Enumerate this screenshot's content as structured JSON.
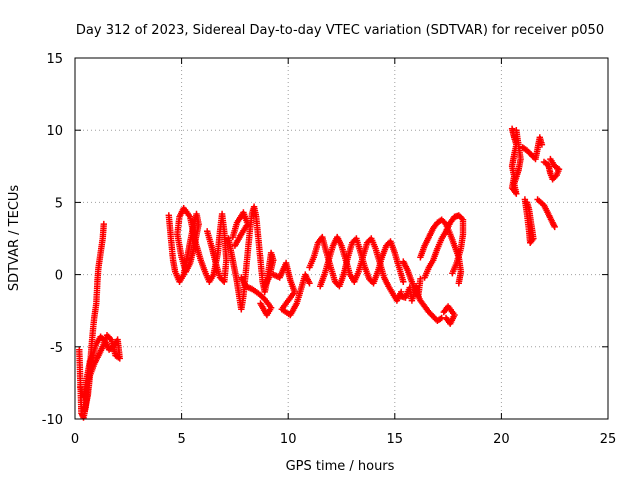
{
  "chart_data": {
    "type": "scatter",
    "title": "Day 312 of 2023, Sidereal Day-to-day VTEC variation (SDTVAR) for receiver p050",
    "xlabel": "GPS time / hours",
    "ylabel": "SDTVAR / TECUs",
    "xlim": [
      0,
      25
    ],
    "ylim": [
      -10,
      15
    ],
    "xticks": [
      "0",
      "5",
      "10",
      "15",
      "20",
      "25"
    ],
    "yticks": [
      "-10",
      "-5",
      "0",
      "5",
      "10",
      "15"
    ],
    "grid": true,
    "marker": "+",
    "color": "#ff0000",
    "series": [
      {
        "name": "SDTVAR",
        "segments": [
          [
            [
              0.2,
              -5.2
            ],
            [
              0.3,
              -9.6
            ],
            [
              0.4,
              -9.9
            ],
            [
              0.5,
              -9.2
            ],
            [
              0.6,
              -8.0
            ],
            [
              0.7,
              -6.5
            ],
            [
              0.8,
              -4.5
            ],
            [
              0.9,
              -3.0
            ],
            [
              1.0,
              -2.0
            ],
            [
              1.05,
              -0.5
            ],
            [
              1.1,
              0.5
            ],
            [
              1.2,
              1.5
            ],
            [
              1.3,
              2.5
            ],
            [
              1.35,
              3.5
            ]
          ],
          [
            [
              0.25,
              -7.8
            ],
            [
              0.4,
              -8.5
            ],
            [
              0.55,
              -7.2
            ],
            [
              0.7,
              -6.0
            ],
            [
              0.85,
              -5.5
            ],
            [
              1.0,
              -4.8
            ],
            [
              1.2,
              -4.3
            ],
            [
              1.4,
              -4.6
            ],
            [
              1.6,
              -5.2
            ],
            [
              1.8,
              -5.0
            ],
            [
              2.0,
              -4.5
            ],
            [
              2.1,
              -5.8
            ],
            [
              1.9,
              -5.6
            ],
            [
              1.7,
              -4.5
            ],
            [
              1.5,
              -4.2
            ],
            [
              1.3,
              -5.0
            ],
            [
              1.1,
              -5.6
            ],
            [
              0.9,
              -6.2
            ],
            [
              0.7,
              -7.0
            ],
            [
              0.6,
              -8.4
            ],
            [
              0.45,
              -9.4
            ]
          ],
          [
            [
              4.4,
              4.1
            ],
            [
              4.5,
              2.5
            ],
            [
              4.6,
              1.0
            ],
            [
              4.7,
              0.2
            ],
            [
              4.9,
              -0.5
            ],
            [
              5.1,
              0.0
            ],
            [
              5.3,
              1.5
            ],
            [
              5.5,
              3.0
            ],
            [
              5.7,
              4.2
            ],
            [
              5.8,
              3.5
            ],
            [
              5.6,
              2.0
            ],
            [
              5.4,
              0.8
            ],
            [
              5.2,
              0.2
            ],
            [
              5.0,
              1.2
            ],
            [
              4.8,
              2.8
            ],
            [
              4.9,
              4.0
            ],
            [
              5.1,
              4.6
            ],
            [
              5.4,
              4.0
            ],
            [
              5.6,
              2.5
            ],
            [
              5.9,
              1.0
            ],
            [
              6.1,
              0.2
            ],
            [
              6.3,
              -0.5
            ],
            [
              6.5,
              0.0
            ],
            [
              6.7,
              1.5
            ],
            [
              6.8,
              3.0
            ],
            [
              6.9,
              4.2
            ],
            [
              7.0,
              3.0
            ],
            [
              7.1,
              1.0
            ],
            [
              7.0,
              -0.5
            ],
            [
              6.8,
              -0.2
            ],
            [
              6.6,
              0.8
            ],
            [
              6.4,
              2.0
            ],
            [
              6.2,
              3.0
            ]
          ],
          [
            [
              7.2,
              2.5
            ],
            [
              7.4,
              1.0
            ],
            [
              7.6,
              -0.5
            ],
            [
              7.7,
              -1.5
            ],
            [
              7.8,
              -2.4
            ],
            [
              7.9,
              -1.5
            ],
            [
              8.0,
              0.0
            ],
            [
              8.1,
              1.5
            ],
            [
              8.2,
              3.0
            ],
            [
              8.3,
              4.2
            ],
            [
              8.4,
              4.7
            ],
            [
              8.5,
              4.0
            ],
            [
              8.6,
              2.5
            ],
            [
              8.7,
              1.0
            ],
            [
              8.8,
              -0.5
            ],
            [
              8.9,
              -1.2
            ],
            [
              9.0,
              -0.5
            ],
            [
              9.1,
              0.5
            ],
            [
              9.2,
              1.5
            ],
            [
              9.3,
              1.0
            ],
            [
              9.1,
              -0.2
            ],
            [
              8.9,
              -0.8
            ]
          ],
          [
            [
              7.5,
              2.0
            ],
            [
              7.8,
              2.8
            ],
            [
              8.1,
              3.5
            ],
            [
              7.9,
              4.3
            ],
            [
              7.6,
              3.6
            ],
            [
              7.4,
              2.6
            ]
          ],
          [
            [
              7.8,
              -0.2
            ],
            [
              8.0,
              -0.8
            ],
            [
              8.3,
              -1.0
            ],
            [
              8.6,
              -1.3
            ],
            [
              8.9,
              -1.7
            ],
            [
              9.2,
              -2.3
            ],
            [
              9.0,
              -2.8
            ],
            [
              8.7,
              -2.0
            ]
          ],
          [
            [
              9.3,
              0.0
            ],
            [
              9.6,
              -0.2
            ],
            [
              9.9,
              0.8
            ],
            [
              10.1,
              -0.4
            ],
            [
              10.3,
              -1.2
            ],
            [
              10.0,
              -1.8
            ],
            [
              9.7,
              -2.4
            ],
            [
              10.1,
              -2.8
            ],
            [
              10.4,
              -2.0
            ],
            [
              10.6,
              -1.0
            ],
            [
              10.8,
              0.0
            ],
            [
              11.0,
              -0.6
            ]
          ],
          [
            [
              11.0,
              0.5
            ],
            [
              11.2,
              1.2
            ],
            [
              11.4,
              2.2
            ],
            [
              11.6,
              2.6
            ],
            [
              11.8,
              1.5
            ],
            [
              12.0,
              0.5
            ],
            [
              12.2,
              -0.5
            ],
            [
              12.4,
              -0.8
            ],
            [
              12.6,
              0.0
            ],
            [
              12.8,
              1.2
            ],
            [
              13.0,
              2.2
            ],
            [
              13.2,
              2.5
            ],
            [
              13.4,
              1.5
            ],
            [
              13.6,
              0.5
            ],
            [
              13.8,
              -0.3
            ],
            [
              14.0,
              -0.6
            ],
            [
              14.2,
              0.2
            ],
            [
              14.4,
              1.2
            ],
            [
              14.6,
              2.0
            ],
            [
              14.8,
              2.3
            ],
            [
              15.0,
              1.5
            ],
            [
              15.2,
              0.5
            ],
            [
              15.4,
              -0.5
            ]
          ],
          [
            [
              11.5,
              -0.8
            ],
            [
              11.7,
              0.0
            ],
            [
              11.9,
              1.0
            ],
            [
              12.1,
              2.0
            ],
            [
              12.3,
              2.6
            ],
            [
              12.5,
              2.0
            ],
            [
              12.7,
              1.0
            ],
            [
              12.9,
              0.0
            ],
            [
              13.1,
              -0.5
            ],
            [
              13.3,
              0.2
            ],
            [
              13.5,
              1.2
            ],
            [
              13.7,
              2.2
            ],
            [
              13.9,
              2.5
            ],
            [
              14.1,
              1.8
            ],
            [
              14.3,
              0.8
            ],
            [
              14.5,
              -0.2
            ],
            [
              14.7,
              -0.8
            ],
            [
              14.9,
              -1.3
            ],
            [
              15.1,
              -1.8
            ],
            [
              15.3,
              -1.2
            ]
          ],
          [
            [
              15.4,
              0.9
            ],
            [
              15.6,
              0.3
            ],
            [
              15.8,
              -0.5
            ],
            [
              16.0,
              -1.2
            ],
            [
              16.2,
              -1.8
            ],
            [
              16.4,
              -2.2
            ],
            [
              16.6,
              -2.6
            ],
            [
              16.8,
              -2.9
            ],
            [
              17.0,
              -3.2
            ],
            [
              17.2,
              -3.0
            ]
          ],
          [
            [
              15.3,
              -1.5
            ],
            [
              15.5,
              -1.6
            ],
            [
              15.7,
              -0.9
            ],
            [
              15.8,
              -1.8
            ],
            [
              16.0,
              -0.8
            ],
            [
              16.1,
              -1.5
            ],
            [
              16.2,
              -0.3
            ]
          ],
          [
            [
              16.2,
              1.2
            ],
            [
              16.4,
              2.0
            ],
            [
              16.6,
              2.6
            ],
            [
              16.8,
              3.2
            ],
            [
              17.0,
              3.6
            ],
            [
              17.2,
              3.8
            ],
            [
              17.4,
              3.5
            ],
            [
              17.6,
              2.8
            ],
            [
              17.8,
              2.0
            ],
            [
              18.0,
              1.2
            ],
            [
              18.1,
              0.2
            ],
            [
              18.0,
              -0.6
            ]
          ],
          [
            [
              16.4,
              -0.2
            ],
            [
              16.6,
              0.5
            ],
            [
              16.8,
              1.0
            ],
            [
              17.0,
              1.8
            ],
            [
              17.2,
              2.5
            ],
            [
              17.4,
              3.0
            ],
            [
              17.6,
              3.6
            ],
            [
              17.8,
              4.0
            ],
            [
              18.0,
              4.1
            ],
            [
              18.2,
              3.8
            ],
            [
              18.2,
              2.8
            ],
            [
              18.1,
              1.8
            ],
            [
              17.9,
              0.8
            ],
            [
              17.7,
              0.1
            ]
          ],
          [
            [
              17.4,
              -3.0
            ],
            [
              17.6,
              -3.4
            ],
            [
              17.8,
              -2.8
            ],
            [
              17.5,
              -2.2
            ],
            [
              17.3,
              -2.6
            ]
          ],
          [
            [
              20.5,
              10.1
            ],
            [
              20.6,
              9.5
            ],
            [
              20.7,
              9.0
            ],
            [
              20.6,
              8.3
            ],
            [
              20.5,
              7.5
            ],
            [
              20.6,
              6.8
            ],
            [
              20.5,
              6.0
            ],
            [
              20.7,
              5.6
            ],
            [
              20.6,
              6.3
            ],
            [
              20.8,
              7.2
            ],
            [
              20.9,
              8.0
            ],
            [
              20.8,
              9.0
            ],
            [
              20.7,
              10.0
            ]
          ],
          [
            [
              21.0,
              8.8
            ],
            [
              21.2,
              8.6
            ],
            [
              21.4,
              8.3
            ],
            [
              21.6,
              8.0
            ],
            [
              21.8,
              9.5
            ],
            [
              21.9,
              9.0
            ]
          ],
          [
            [
              21.1,
              5.2
            ],
            [
              21.2,
              4.2
            ],
            [
              21.3,
              3.0
            ],
            [
              21.35,
              2.2
            ],
            [
              21.5,
              2.5
            ],
            [
              21.3,
              4.5
            ],
            [
              21.2,
              5.0
            ]
          ],
          [
            [
              21.7,
              5.2
            ],
            [
              22.0,
              4.8
            ],
            [
              22.2,
              4.2
            ],
            [
              22.4,
              3.6
            ],
            [
              22.5,
              3.3
            ]
          ],
          [
            [
              22.0,
              7.8
            ],
            [
              22.2,
              7.6
            ],
            [
              22.3,
              7.0
            ],
            [
              22.4,
              6.6
            ],
            [
              22.6,
              6.9
            ],
            [
              22.7,
              7.3
            ],
            [
              22.5,
              7.5
            ],
            [
              22.3,
              8.0
            ]
          ]
        ]
      }
    ]
  }
}
